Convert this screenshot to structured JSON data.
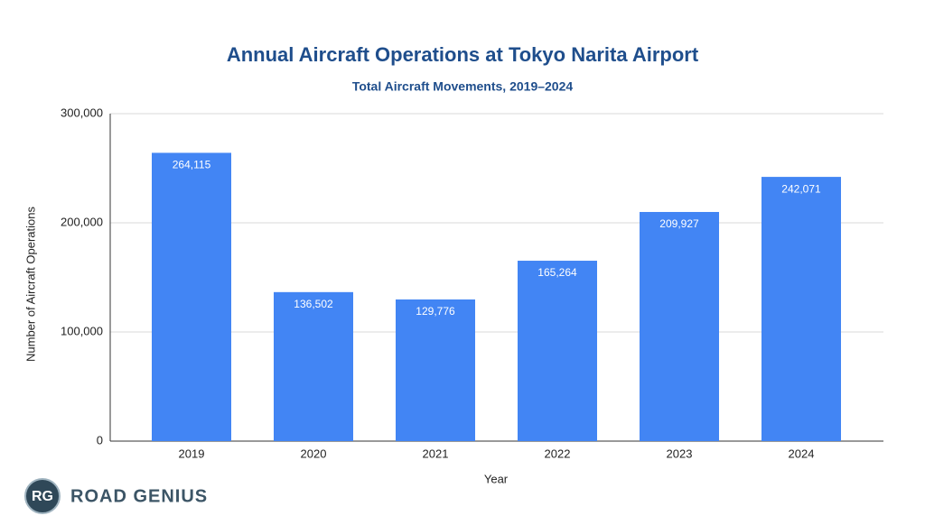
{
  "chart_data": {
    "type": "bar",
    "title": "Annual Aircraft Operations at Tokyo Narita Airport",
    "subtitle": "Total Aircraft Movements, 2019–2024",
    "x_label": "Year",
    "y_label": "Number of Aircraft Operations",
    "categories": [
      "2019",
      "2020",
      "2021",
      "2022",
      "2023",
      "2024"
    ],
    "values": [
      264115,
      136502,
      129776,
      165264,
      209927,
      242071
    ],
    "value_labels": [
      "264,115",
      "136,502",
      "129,776",
      "165,264",
      "209,927",
      "242,071"
    ],
    "color": "#4285f4",
    "ylim": [
      0,
      300000
    ],
    "yticks": [
      0,
      {
        "value": 100000,
        "label": "100,000"
      },
      {
        "value": 200000,
        "label": "200,000"
      },
      {
        "value": 300000,
        "label": "300,000"
      }
    ],
    "grid": true
  },
  "branding": {
    "badge": "RG",
    "name": "ROAD GENIUS"
  }
}
